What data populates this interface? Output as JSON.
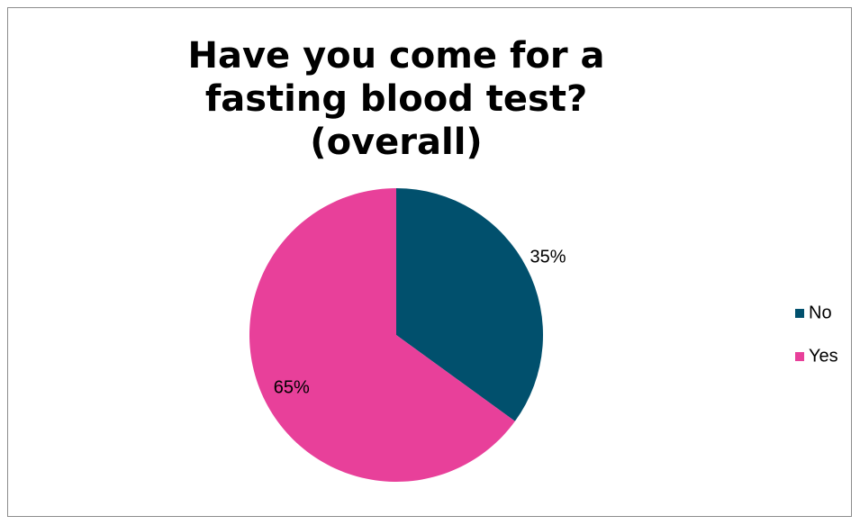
{
  "chart_data": {
    "type": "pie",
    "title": "Have you come for a fasting blood test? (overall)",
    "categories": [
      "No",
      "Yes"
    ],
    "values": [
      35,
      65
    ],
    "value_labels": [
      "35%",
      "65%"
    ],
    "colors": [
      "#01506d",
      "#e8409a"
    ],
    "legend": "right"
  }
}
